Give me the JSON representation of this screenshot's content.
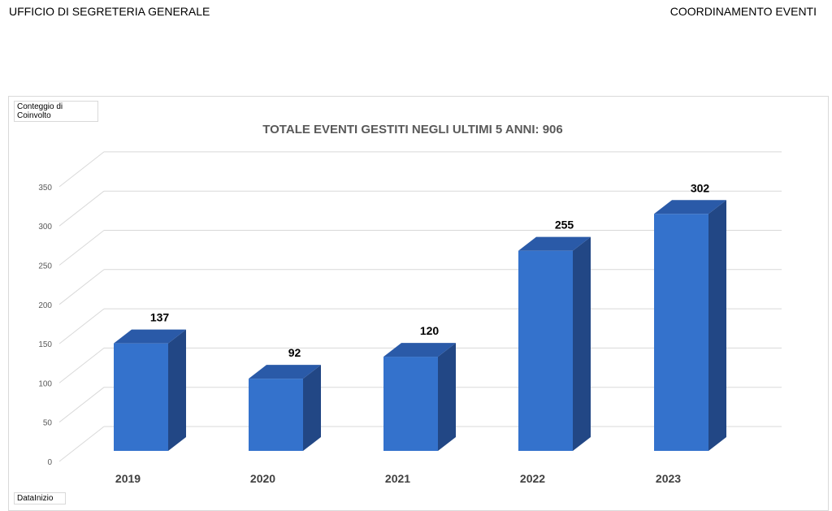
{
  "header": {
    "left": "UFFICIO DI SEGRETERIA GENERALE",
    "right": "COORDINAMENTO EVENTI"
  },
  "field_buttons": {
    "values": "Conteggio di Coinvolto",
    "axis": "DataInizio"
  },
  "chart_data": {
    "type": "bar",
    "title": "TOTALE EVENTI GESTITI NEGLI ULTIMI 5 ANNI: 906",
    "categories": [
      "2019",
      "2020",
      "2021",
      "2022",
      "2023"
    ],
    "values": [
      137,
      92,
      120,
      255,
      302
    ],
    "data_labels": [
      "137",
      "92",
      "120",
      "255",
      "302"
    ],
    "yticks": [
      "0",
      "50",
      "100",
      "150",
      "200",
      "250",
      "300",
      "350"
    ],
    "ylim": [
      0,
      350
    ],
    "grid": true,
    "style": "3d-column",
    "colors": {
      "front": "#3472cc",
      "side": "#224785",
      "top": "#2a5aa8"
    }
  }
}
